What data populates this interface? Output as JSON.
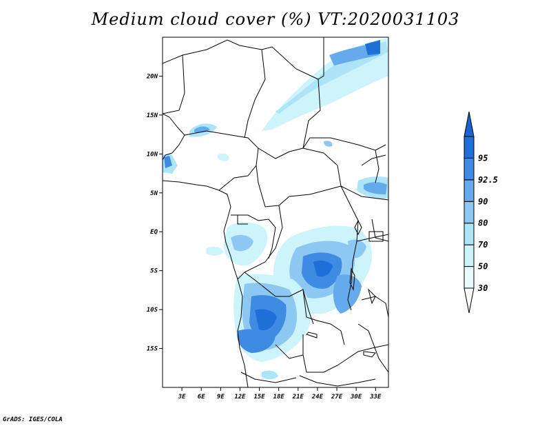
{
  "title": "Medium cloud cover (%) VT:2020031103",
  "credit": "GrADS: IGES/COLA",
  "map": {
    "lon_range": [
      0,
      35
    ],
    "lat_range": [
      -20,
      25
    ],
    "lat_ticks": [
      {
        "value": 20,
        "label": "20N"
      },
      {
        "value": 15,
        "label": "15N"
      },
      {
        "value": 10,
        "label": "10N"
      },
      {
        "value": 5,
        "label": "5N"
      },
      {
        "value": 0,
        "label": "EQ"
      },
      {
        "value": -5,
        "label": "5S"
      },
      {
        "value": -10,
        "label": "10S"
      },
      {
        "value": -15,
        "label": "15S"
      }
    ],
    "lon_ticks": [
      {
        "value": 3,
        "label": "3E"
      },
      {
        "value": 6,
        "label": "6E"
      },
      {
        "value": 9,
        "label": "9E"
      },
      {
        "value": 12,
        "label": "12E"
      },
      {
        "value": 15,
        "label": "15E"
      },
      {
        "value": 18,
        "label": "18E"
      },
      {
        "value": 21,
        "label": "21E"
      },
      {
        "value": 24,
        "label": "24E"
      },
      {
        "value": 27,
        "label": "27E"
      },
      {
        "value": 30,
        "label": "30E"
      },
      {
        "value": 33,
        "label": "33E"
      }
    ]
  },
  "colorbar": {
    "levels": [
      {
        "label": "30",
        "color": "#e8fcfe"
      },
      {
        "label": "50",
        "color": "#cdf3fb"
      },
      {
        "label": "70",
        "color": "#aee4f8"
      },
      {
        "label": "80",
        "color": "#8cc8f2"
      },
      {
        "label": "90",
        "color": "#64aaec"
      },
      {
        "label": "92.5",
        "color": "#3f8ae3"
      },
      {
        "label": "95",
        "color": "#1f6fd9"
      }
    ],
    "below_color": "#ffffff",
    "above_color": "#1a64d0"
  }
}
